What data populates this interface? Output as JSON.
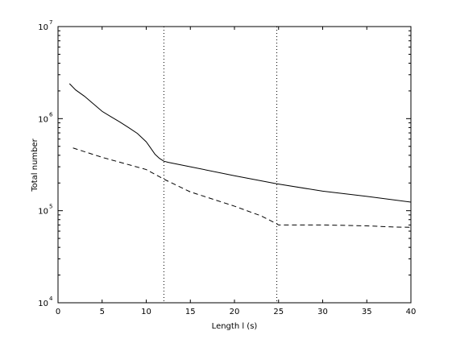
{
  "chart_data": {
    "type": "line",
    "xlabel": "Length l (s)",
    "ylabel": "Total number",
    "xlim": [
      0,
      40
    ],
    "ylim": [
      10000,
      10000000
    ],
    "yscale": "log",
    "grid": false,
    "legend": "none",
    "x_ticks": [
      0,
      5,
      10,
      15,
      20,
      25,
      30,
      35,
      40
    ],
    "x_tick_labels": [
      "0",
      "5",
      "10",
      "15",
      "20",
      "25",
      "30",
      "35",
      "40"
    ],
    "y_ticks": [
      10000,
      100000,
      1000000,
      10000000
    ],
    "y_tick_base": [
      "10",
      "10",
      "10",
      "10"
    ],
    "y_tick_exp": [
      "4",
      "5",
      "6",
      "7"
    ],
    "vlines": [
      12,
      24.8
    ],
    "series": [
      {
        "style": "solid",
        "color": "#000000",
        "x": [
          1.3,
          2,
          3,
          4,
          5,
          6,
          7,
          8,
          9,
          10,
          10.5,
          11,
          11.5,
          12,
          12.5,
          15,
          20,
          24.8,
          30,
          35,
          40
        ],
        "y": [
          2400000,
          2050000,
          1750000,
          1450000,
          1200000,
          1050000,
          920000,
          800000,
          690000,
          560000,
          480000,
          410000,
          370000,
          345000,
          335000,
          300000,
          240000,
          196000,
          163000,
          143000,
          124000
        ]
      },
      {
        "style": "dashed",
        "color": "#000000",
        "x": [
          1.7,
          5,
          10,
          12,
          15,
          20,
          23,
          24.8,
          25,
          30,
          35,
          38,
          40
        ],
        "y": [
          480000,
          380000,
          280000,
          220000,
          160000,
          112000,
          88000,
          72000,
          70000,
          70000,
          68500,
          66500,
          66000
        ]
      }
    ]
  }
}
